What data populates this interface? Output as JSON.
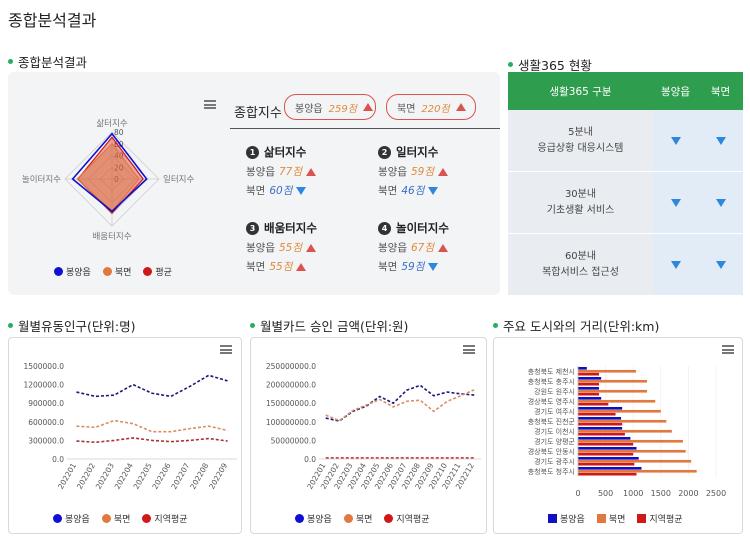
{
  "page_title": "종합분석결과",
  "summary": {
    "section_title": "종합분석결과",
    "radar": {
      "axes": [
        "삶터지수",
        "일터지수",
        "배움터지수",
        "놀이터지수"
      ],
      "ticks": [
        "80",
        "60",
        "40",
        "20",
        "0"
      ],
      "legend": [
        {
          "label": "봉양읍",
          "color": "#1010d0"
        },
        {
          "label": "북면",
          "color": "#e07840"
        },
        {
          "label": "평균",
          "color": "#d01818"
        }
      ]
    },
    "composite_label": "종합지수",
    "composite_pills": [
      {
        "name": "봉양읍",
        "value": "259점"
      },
      {
        "name": "북면",
        "value": "220점"
      }
    ],
    "indices": [
      {
        "num": "1",
        "title": "삶터지수",
        "rows": [
          {
            "name": "봉양읍",
            "value": "77점",
            "trend": "up"
          },
          {
            "name": "북면",
            "value": "60점",
            "trend": "down"
          }
        ]
      },
      {
        "num": "2",
        "title": "일터지수",
        "rows": [
          {
            "name": "봉양읍",
            "value": "59점",
            "trend": "up"
          },
          {
            "name": "북면",
            "value": "46점",
            "trend": "down"
          }
        ]
      },
      {
        "num": "3",
        "title": "배움터지수",
        "rows": [
          {
            "name": "봉양읍",
            "value": "55점",
            "trend": "up"
          },
          {
            "name": "북면",
            "value": "55점",
            "trend": "up"
          }
        ]
      },
      {
        "num": "4",
        "title": "놀이터지수",
        "rows": [
          {
            "name": "봉양읍",
            "value": "67점",
            "trend": "up"
          },
          {
            "name": "북면",
            "value": "59점",
            "trend": "down"
          }
        ]
      }
    ]
  },
  "life365": {
    "section_title": "생활365 현황",
    "headers": [
      "생활365 구분",
      "봉양읍",
      "북면"
    ],
    "rows": [
      {
        "line1": "5분내",
        "line2": "응급상황 대응시스템",
        "a": "down",
        "b": "down"
      },
      {
        "line1": "30분내",
        "line2": "기초생활 서비스",
        "a": "down",
        "b": "down"
      },
      {
        "line1": "60분내",
        "line2": "복합서비스 접근성",
        "a": "down",
        "b": "down"
      }
    ]
  },
  "charts": {
    "population": {
      "title": "월별유동인구(단위:명)",
      "legend": [
        "봉양읍",
        "북면",
        "지역평균"
      ]
    },
    "card": {
      "title": "월별카드 승인 금액(단위:원)",
      "legend": [
        "봉양읍",
        "북면",
        "지역평균"
      ]
    },
    "distance": {
      "title": "주요 도시와의 거리(단위:km)",
      "legend": [
        "봉양읍",
        "북면",
        "지역평균"
      ]
    }
  },
  "chart_data": [
    {
      "type": "line",
      "ylim": [
        0,
        1500000
      ],
      "yticks": [
        "1500000.0",
        "1200000.0",
        "900000.0",
        "600000.0",
        "300000.0",
        "0.0"
      ],
      "categories": [
        "202201",
        "202202",
        "202203",
        "202204",
        "202205",
        "202206",
        "202207",
        "202208",
        "202209"
      ],
      "series": [
        {
          "name": "봉양읍",
          "color": "#1a1a7a",
          "values": [
            1080000,
            1010000,
            1030000,
            1200000,
            1060000,
            1010000,
            1170000,
            1350000,
            1260000
          ]
        },
        {
          "name": "북면",
          "color": "#d89060",
          "values": [
            530000,
            510000,
            620000,
            570000,
            440000,
            440000,
            490000,
            530000,
            460000
          ]
        },
        {
          "name": "지역평균",
          "color": "#b03030",
          "values": [
            290000,
            270000,
            300000,
            340000,
            300000,
            280000,
            300000,
            330000,
            290000
          ]
        }
      ]
    },
    {
      "type": "line",
      "ylim": [
        0,
        250000000
      ],
      "yticks": [
        "250000000.0",
        "200000000.0",
        "150000000.0",
        "100000000.0",
        "50000000.0",
        "0.0"
      ],
      "categories": [
        "202201",
        "202202",
        "202203",
        "202204",
        "202205",
        "202206",
        "202207",
        "202208",
        "202209",
        "202210",
        "202211",
        "202212"
      ],
      "series": [
        {
          "name": "봉양읍",
          "color": "#1a1a7a",
          "values": [
            110000000,
            102000000,
            128000000,
            142000000,
            168000000,
            150000000,
            185000000,
            198000000,
            170000000,
            180000000,
            175000000,
            172000000
          ]
        },
        {
          "name": "북면",
          "color": "#d89060",
          "values": [
            118000000,
            103000000,
            130000000,
            145000000,
            160000000,
            140000000,
            155000000,
            158000000,
            128000000,
            155000000,
            170000000,
            186000000
          ]
        },
        {
          "name": "지역평균",
          "color": "#c03030",
          "values": [
            3000000,
            3000000,
            3000000,
            3000000,
            3000000,
            3000000,
            3000000,
            3000000,
            3000000,
            3000000,
            3000000,
            3000000
          ]
        }
      ]
    },
    {
      "type": "bar",
      "orientation": "horizontal",
      "xlim": [
        0,
        2500
      ],
      "xticks": [
        "0",
        "500",
        "1000",
        "1500",
        "2000",
        "2500"
      ],
      "categories": [
        "충청북도 제천시",
        "충청북도 충주시",
        "강원도 원주시",
        "경상북도 영주시",
        "경기도 여주시",
        "충청북도 진천군",
        "경기도 이천시",
        "경기도 양평군",
        "경상북도 안동시",
        "경기도 광주시",
        "충청북도 청주시"
      ],
      "series": [
        {
          "name": "봉양읍",
          "color": "#1010c0",
          "values": [
            160,
            420,
            380,
            420,
            800,
            780,
            800,
            950,
            1060,
            1100,
            1150
          ]
        },
        {
          "name": "북면",
          "color": "#e07840",
          "values": [
            1050,
            1250,
            1250,
            1400,
            1500,
            1600,
            1700,
            1900,
            1950,
            2050,
            2150
          ]
        },
        {
          "name": "지역평균",
          "color": "#d01818",
          "values": [
            380,
            380,
            380,
            550,
            680,
            800,
            850,
            1000,
            1000,
            1020,
            1060
          ]
        }
      ]
    }
  ]
}
